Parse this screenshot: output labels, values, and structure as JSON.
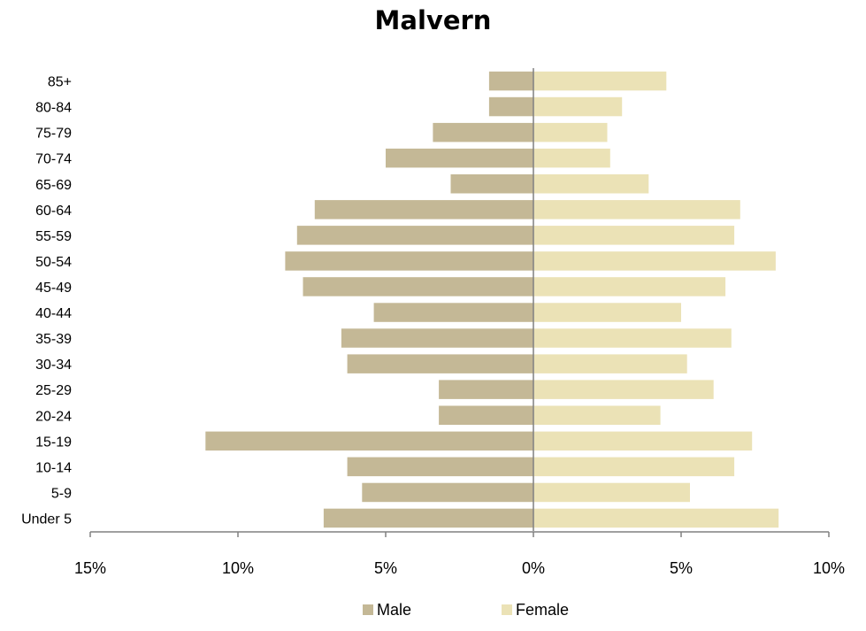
{
  "chart_data": {
    "type": "bar",
    "orientation": "horizontal",
    "title": "Malvern",
    "categories": [
      "Under 5",
      "5-9",
      "10-14",
      "15-19",
      "20-24",
      "25-29",
      "30-34",
      "35-39",
      "40-44",
      "45-49",
      "50-54",
      "55-59",
      "60-64",
      "65-69",
      "70-74",
      "75-79",
      "80-84",
      "85+"
    ],
    "series": [
      {
        "name": "Male",
        "color": "#c4b896",
        "values": [
          7.1,
          5.8,
          6.3,
          11.1,
          3.2,
          3.2,
          6.3,
          6.5,
          5.4,
          7.8,
          8.4,
          8.0,
          7.4,
          2.8,
          5.0,
          3.4,
          1.5,
          1.5
        ]
      },
      {
        "name": "Female",
        "color": "#ebe2b6",
        "values": [
          8.3,
          5.3,
          6.8,
          7.4,
          4.3,
          6.1,
          5.2,
          6.7,
          5.0,
          6.5,
          8.2,
          6.8,
          7.0,
          3.9,
          2.6,
          2.5,
          3.0,
          4.5
        ]
      }
    ],
    "xlim": [
      -15,
      10
    ],
    "xticks": [
      -15,
      -10,
      -5,
      0,
      5,
      10
    ],
    "xtick_labels": [
      "15%",
      "10%",
      "5%",
      "0%",
      "5%",
      "10%"
    ],
    "xlabel": "",
    "ylabel": "",
    "grid": false,
    "legend_position": "bottom"
  }
}
